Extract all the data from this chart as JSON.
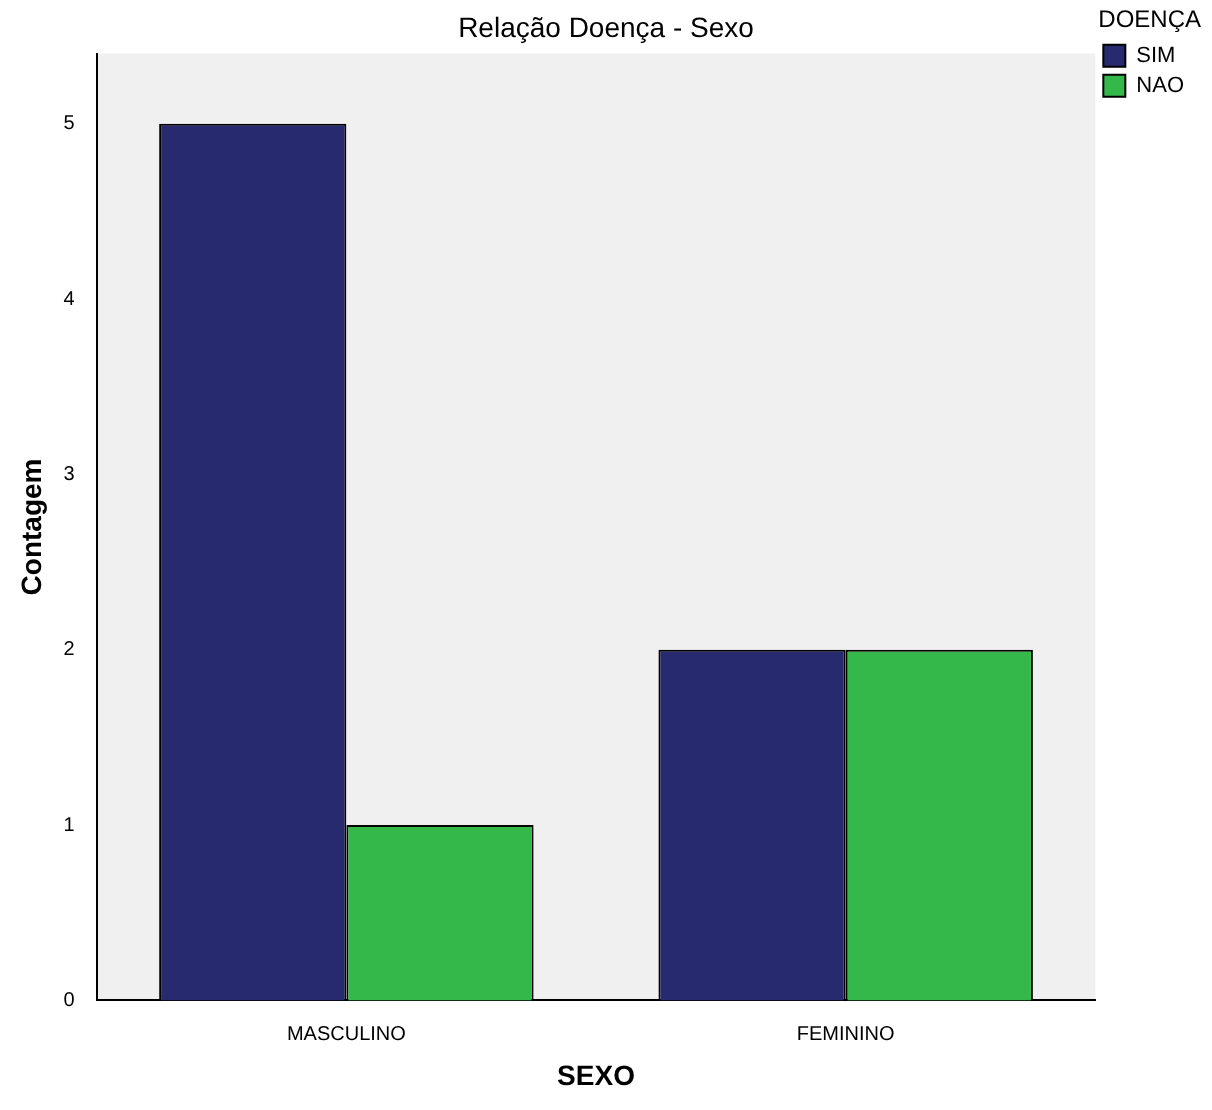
{
  "chart_data": {
    "type": "bar",
    "title": "Relação Doença - Sexo",
    "xlabel": "SEXO",
    "ylabel": "Contagem",
    "legend_title": "DOENÇA",
    "legend": "top right",
    "categories": [
      "MASCULINO",
      "FEMININO"
    ],
    "series": [
      {
        "name": "SIM",
        "color": "#272a6e",
        "values": [
          5,
          2
        ]
      },
      {
        "name": "NAO",
        "color": "#34b84a",
        "values": [
          1,
          2
        ]
      }
    ],
    "ylim": [
      0,
      5.4
    ],
    "yticks": [
      0,
      1,
      2,
      3,
      4,
      5
    ],
    "grid": false
  }
}
